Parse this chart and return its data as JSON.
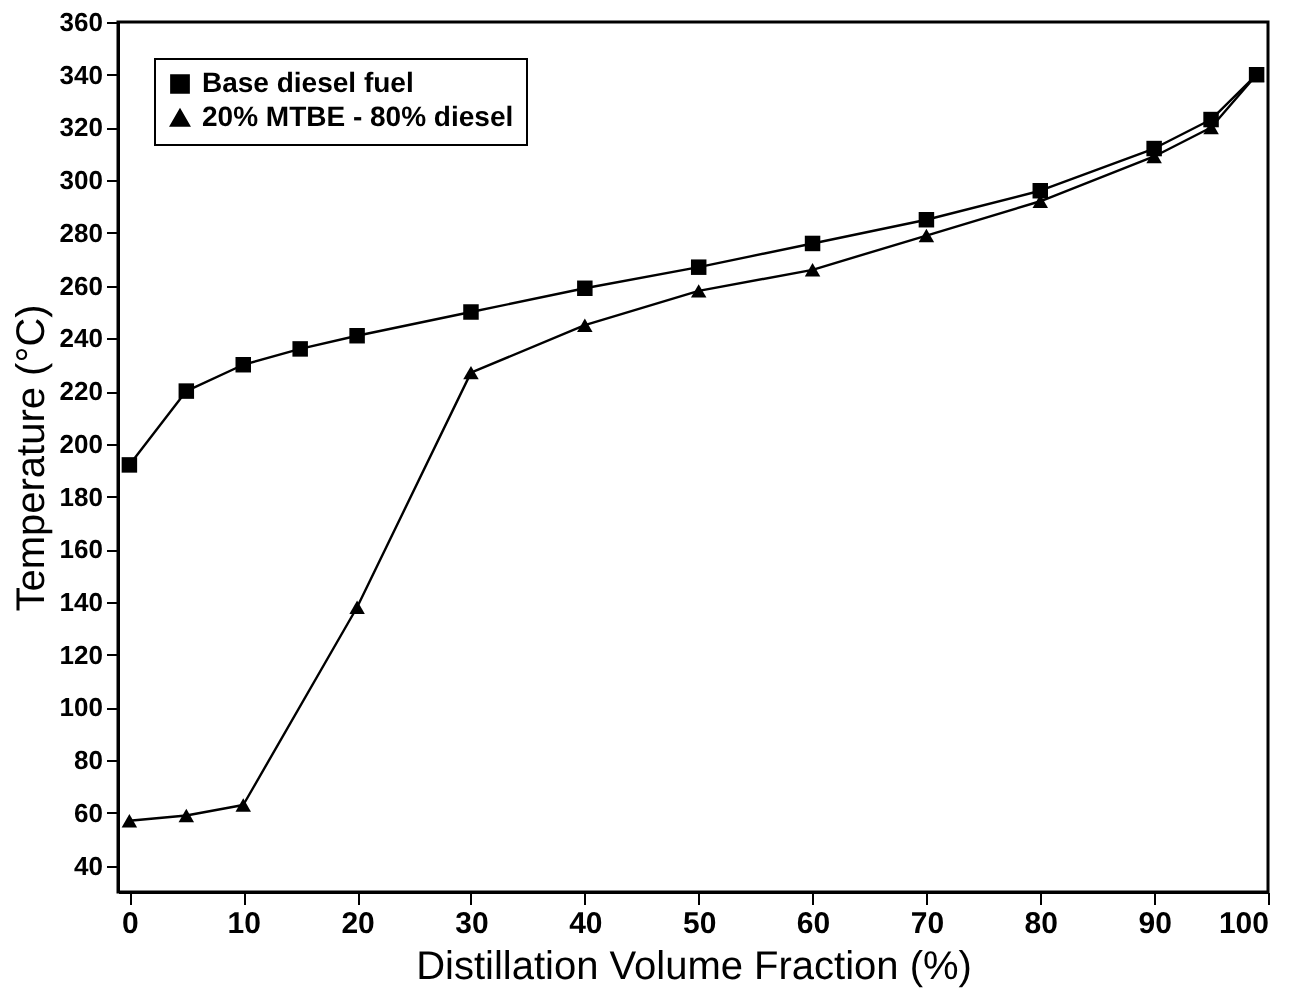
{
  "chart_data": {
    "type": "line",
    "xlabel": "Distillation Volume Fraction (%)",
    "ylabel": "Temperature (°C)",
    "xlim": [
      -1,
      100
    ],
    "xticks": [
      0,
      10,
      20,
      30,
      40,
      50,
      60,
      70,
      80,
      90,
      100
    ],
    "ylim": [
      30,
      360
    ],
    "yticks": [
      40,
      60,
      80,
      100,
      120,
      140,
      160,
      180,
      200,
      220,
      240,
      260,
      280,
      300,
      320,
      340,
      360
    ],
    "legend": "top left",
    "grid": false,
    "series": [
      {
        "name": "Base diesel fuel",
        "color": "#000000",
        "marker": "square",
        "x": [
          0,
          5,
          10,
          15,
          20,
          30,
          40,
          50,
          60,
          70,
          80,
          90,
          95,
          99
        ],
        "values": [
          192,
          220,
          230,
          236,
          241,
          250,
          259,
          267,
          276,
          285,
          296,
          312,
          323,
          340
        ]
      },
      {
        "name": "20% MTBE - 80% diesel",
        "color": "#000000",
        "marker": "triangle",
        "x": [
          0,
          5,
          10,
          20,
          30,
          40,
          50,
          60,
          70,
          80,
          90,
          95,
          99
        ],
        "values": [
          57,
          59,
          63,
          138,
          227,
          245,
          258,
          266,
          279,
          292,
          309,
          320,
          340
        ]
      }
    ]
  }
}
